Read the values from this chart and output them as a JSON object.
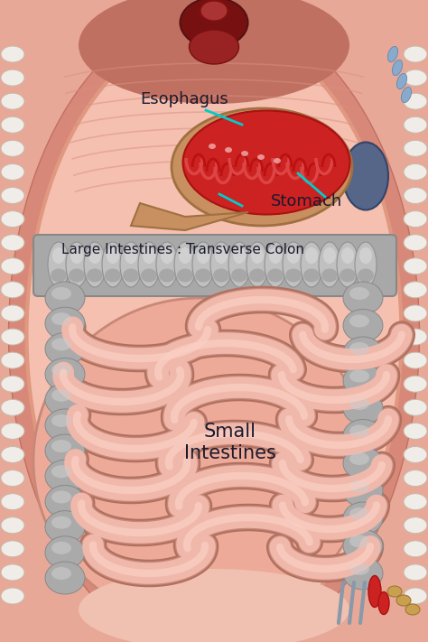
{
  "bg_color": "#e8a898",
  "outer_body_color": "#d4857a",
  "inner_cavity_color": "#f0c0b0",
  "inner_cavity_edge": "#e09080",
  "diaphragm_color": "#e8a090",
  "esophagus_label": "Esophagus",
  "stomach_label": "Stomach",
  "large_intestine_label": "Large Intestines : Transverse Colon",
  "small_intestine_label": "Small\nIntestines",
  "label_color": "#1a1a2e",
  "annotation_line_color": "#00cccc",
  "stomach_red": "#cc2222",
  "stomach_outer": "#c8905a",
  "colon_gray": "#a8a8a8",
  "colon_highlight": "#d0d0d0",
  "colon_shadow": "#888888",
  "si_pink": "#f0b8aa",
  "si_highlight": "#fad0c4",
  "si_shadow": "#c88878",
  "si_deep_shadow": "#b07060",
  "si_bg": "#e8a898",
  "side_colon_gray": "#a0a0a0",
  "spleen_color": "#7070a0",
  "top_organ_dark": "#881111",
  "label_fontsize": 13,
  "small_label_fontsize": 15,
  "large_intestine_fontsize": 11
}
